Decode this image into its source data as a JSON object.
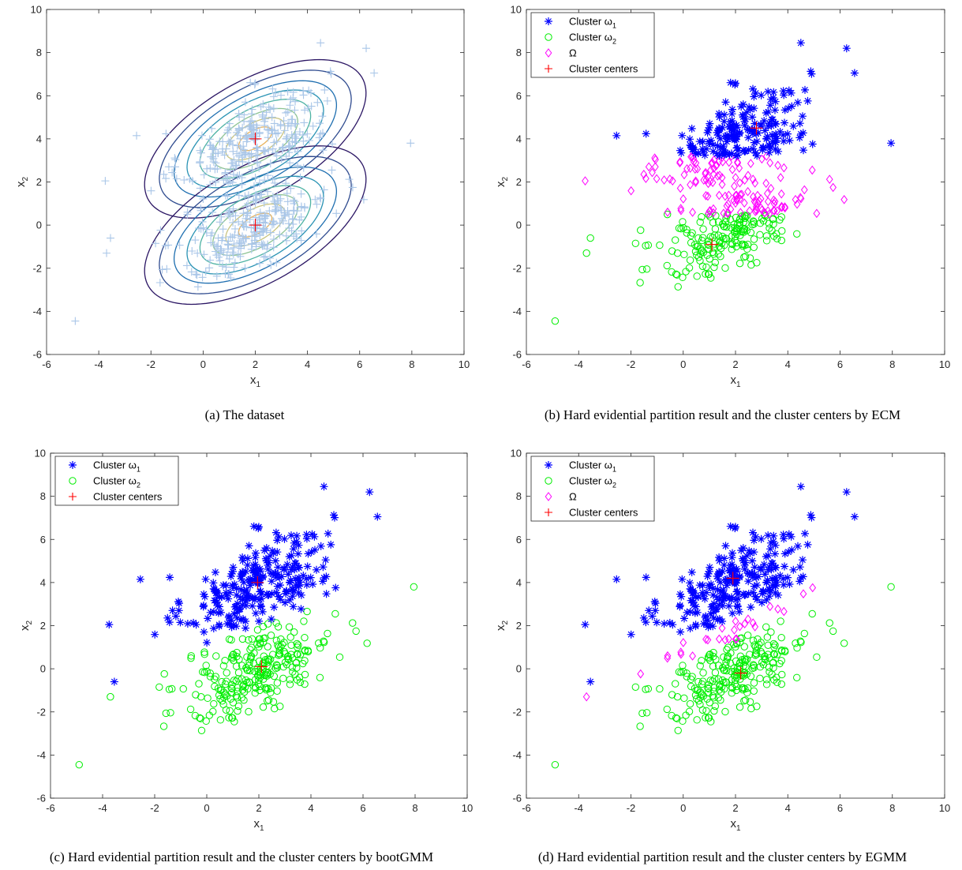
{
  "figure": {
    "captions": {
      "a": "(a)  The dataset",
      "b": "(b)  Hard evidential partition result and the cluster centers by ECM",
      "c": "(c)  Hard evidential partition result and the cluster centers by bootGMM",
      "d": "(d)  Hard evidential partition result and the cluster centers by EGMM"
    }
  },
  "colors": {
    "data_points": "#a9c6e8",
    "cluster1": "#0000ff",
    "cluster2": "#00ee00",
    "omega": "#ff00ff",
    "centers": "#ff0000",
    "contour_levels": [
      "#2b1664",
      "#2f4b8f",
      "#1f6fb0",
      "#2a93b4",
      "#4fb3a4",
      "#8ec494",
      "#c8c480",
      "#e8b25a"
    ]
  },
  "chart_data": [
    {
      "id": "a",
      "type": "scatter",
      "xlabel": "x",
      "xlabel_sub": "1",
      "ylabel": "x",
      "ylabel_sub": "2",
      "xlim": [
        -6,
        10
      ],
      "ylim": [
        -6,
        10
      ],
      "xticks": [
        -6,
        -4,
        -2,
        0,
        2,
        4,
        6,
        8,
        10
      ],
      "yticks": [
        -6,
        -4,
        -2,
        0,
        2,
        4,
        6,
        8,
        10
      ],
      "legend": null,
      "series": [
        {
          "marker": "plus",
          "color_key": "data_points",
          "generator": "all_points"
        },
        {
          "marker": "plus",
          "color_key": "centers",
          "points": [
            [
              2.0,
              4.0
            ],
            [
              2.0,
              0.0
            ]
          ]
        }
      ],
      "contours": {
        "components": [
          {
            "mean": [
              2.0,
              4.0
            ],
            "cov": [
              [
                2.0,
                1.0
              ],
              [
                1.0,
                1.5
              ]
            ]
          },
          {
            "mean": [
              2.0,
              0.0
            ],
            "cov": [
              [
                2.0,
                1.0
              ],
              [
                1.0,
                1.5
              ]
            ]
          }
        ],
        "levels_mahalanobis": [
          3.0,
          2.6,
          2.2,
          1.85,
          1.5,
          1.15,
          0.8,
          0.45
        ]
      }
    },
    {
      "id": "b",
      "type": "scatter",
      "xlabel": "x",
      "xlabel_sub": "1",
      "ylabel": "x",
      "ylabel_sub": "2",
      "xlim": [
        -6,
        10
      ],
      "ylim": [
        -6,
        10
      ],
      "xticks": [
        -6,
        -4,
        -2,
        0,
        2,
        4,
        6,
        8,
        10
      ],
      "yticks": [
        -6,
        -4,
        -2,
        0,
        2,
        4,
        6,
        8,
        10
      ],
      "legend": {
        "position": "top-left",
        "entries": [
          {
            "label": "Cluster ω",
            "sub": "1",
            "marker": "star",
            "color_key": "cluster1"
          },
          {
            "label": "Cluster ω",
            "sub": "2",
            "marker": "circle",
            "color_key": "cluster2"
          },
          {
            "label": "Ω",
            "sub": "",
            "marker": "diamond",
            "color_key": "omega"
          },
          {
            "label": "Cluster centers",
            "sub": "",
            "marker": "plus",
            "color_key": "centers"
          }
        ]
      },
      "partition": {
        "rule": "band",
        "upper": 3.2,
        "lower": 0.5
      },
      "centers": [
        [
          2.8,
          4.5
        ],
        [
          1.1,
          -0.9
        ]
      ]
    },
    {
      "id": "c",
      "type": "scatter",
      "xlabel": "x",
      "xlabel_sub": "1",
      "ylabel": "x",
      "ylabel_sub": "2",
      "xlim": [
        -6,
        10
      ],
      "ylim": [
        -6,
        10
      ],
      "xticks": [
        -6,
        -4,
        -2,
        0,
        2,
        4,
        6,
        8,
        10
      ],
      "yticks": [
        -6,
        -4,
        -2,
        0,
        2,
        4,
        6,
        8,
        10
      ],
      "legend": {
        "position": "top-left",
        "entries": [
          {
            "label": "Cluster ω",
            "sub": "1",
            "marker": "star",
            "color_key": "cluster1"
          },
          {
            "label": "Cluster ω",
            "sub": "2",
            "marker": "circle",
            "color_key": "cluster2"
          },
          {
            "label": "Cluster centers",
            "sub": "",
            "marker": "plus",
            "color_key": "centers"
          }
        ]
      },
      "partition": {
        "rule": "line",
        "x0": 2.0,
        "y0": 1.95,
        "slope": 0.5
      },
      "centers": [
        [
          1.95,
          4.0
        ],
        [
          2.1,
          0.1
        ]
      ]
    },
    {
      "id": "d",
      "type": "scatter",
      "xlabel": "x",
      "xlabel_sub": "1",
      "ylabel": "x",
      "ylabel_sub": "2",
      "xlim": [
        -6,
        10
      ],
      "ylim": [
        -6,
        10
      ],
      "xticks": [
        -6,
        -4,
        -2,
        0,
        2,
        4,
        6,
        8,
        10
      ],
      "yticks": [
        -6,
        -4,
        -2,
        0,
        2,
        4,
        6,
        8,
        10
      ],
      "legend": {
        "position": "top-left",
        "entries": [
          {
            "label": "Cluster ω",
            "sub": "1",
            "marker": "star",
            "color_key": "cluster1"
          },
          {
            "label": "Cluster ω",
            "sub": "2",
            "marker": "circle",
            "color_key": "cluster2"
          },
          {
            "label": "Ω",
            "sub": "",
            "marker": "diamond",
            "color_key": "omega"
          },
          {
            "label": "Cluster centers",
            "sub": "",
            "marker": "plus",
            "color_key": "centers"
          }
        ]
      },
      "partition": {
        "rule": "tilted_band",
        "x0": 2.0,
        "y0": 1.9,
        "slope": 0.55,
        "half_width": 0.55
      },
      "centers": [
        [
          1.9,
          4.2
        ],
        [
          2.2,
          -0.2
        ]
      ]
    }
  ]
}
